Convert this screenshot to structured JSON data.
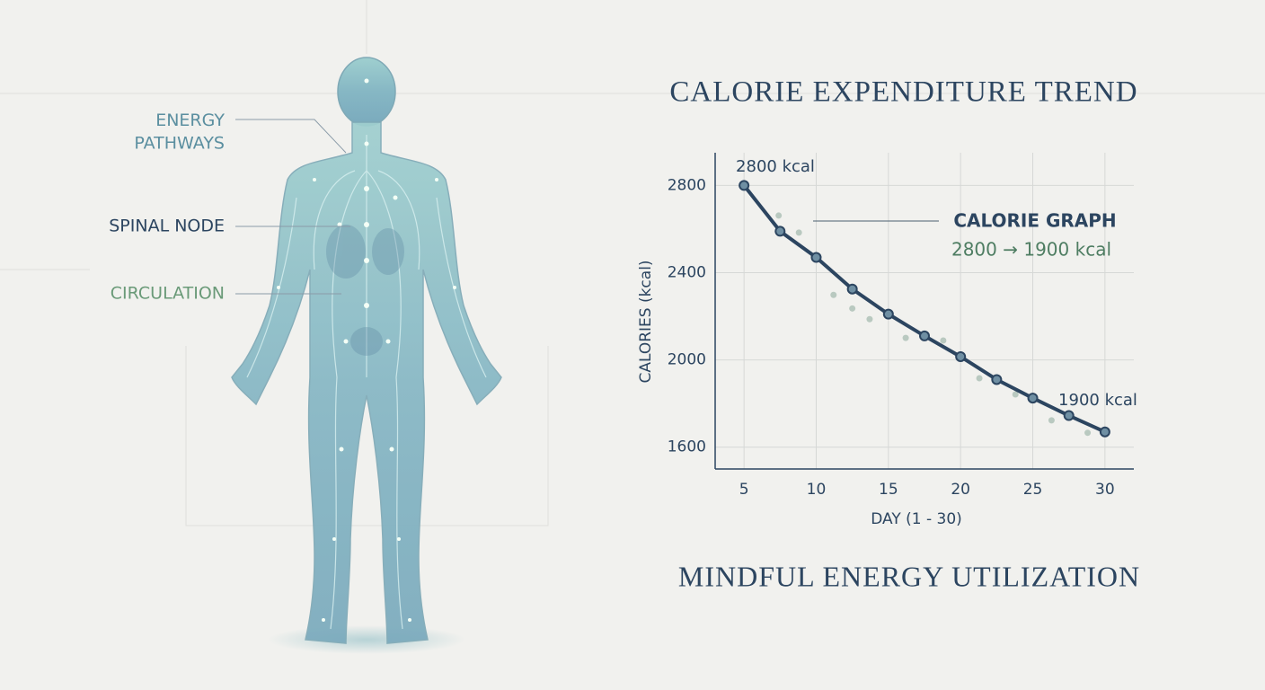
{
  "figure_labels": [
    "ENERGY\nPATHWAYS",
    "SPINAL NODE",
    "CIRCULATION"
  ],
  "chart_data": {
    "type": "line",
    "title": "CALORIE EXPENDITURE TREND",
    "x_label": "DAY (1 - 30)",
    "y_label": "CALORIES (kcal)",
    "x": [
      5,
      7.5,
      10,
      12.5,
      15,
      17.5,
      20,
      22.5,
      25,
      27.5,
      30
    ],
    "values": [
      2800,
      2590,
      2470,
      2325,
      2210,
      2110,
      2015,
      1910,
      1825,
      1745,
      1670
    ],
    "color": "#2c4560",
    "scatter": {
      "x": [
        7.4,
        8.8,
        11.2,
        12.5,
        13.7,
        16.2,
        18.8,
        21.3,
        23.8,
        26.3,
        28.8
      ],
      "values": [
        2662,
        2584,
        2298,
        2236,
        2187,
        2101,
        2089,
        1916,
        1842,
        1723,
        1666
      ],
      "color": "#b9c9c0"
    },
    "xlim": [
      3,
      32
    ],
    "ylim": [
      1500,
      2950
    ],
    "xticks": [
      5,
      10,
      15,
      20,
      25,
      30
    ],
    "yticks": [
      1600,
      2000,
      2400,
      2800
    ],
    "grid": true,
    "annotations": [
      "2800 kcal",
      "CALORIE GRAPH",
      "2800 → 1900 kcal",
      "1900 kcal"
    ],
    "caption": "MINDFUL ENERGY UTILIZATION"
  }
}
